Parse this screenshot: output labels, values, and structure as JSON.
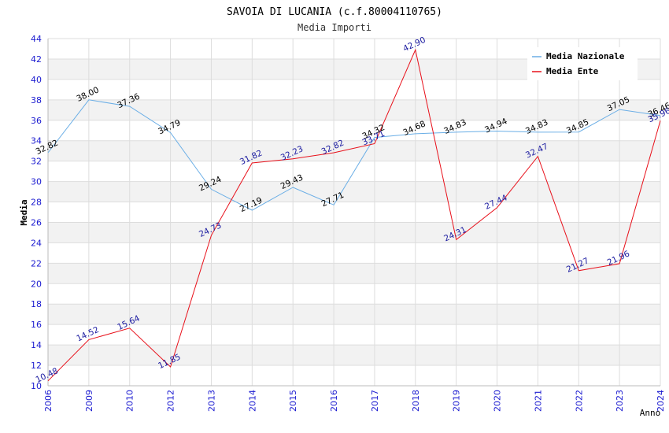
{
  "chart_data": {
    "type": "line",
    "title": "SAVOIA DI LUCANIA (c.f.80004110765)",
    "subtitle": "Media Importi",
    "xlabel": "Anno",
    "ylabel": "Media",
    "ylim": [
      10,
      44
    ],
    "ytick_step": 2,
    "grid": true,
    "legend_position": "top-right",
    "categories": [
      "2006",
      "2009",
      "2010",
      "2012",
      "2013",
      "2014",
      "2015",
      "2016",
      "2017",
      "2018",
      "2019",
      "2020",
      "2021",
      "2022",
      "2023",
      "2024"
    ],
    "series": [
      {
        "name": "Media Nazionale",
        "color": "#6aaee6",
        "label_color": "#000000",
        "values": [
          32.82,
          38.0,
          37.36,
          34.79,
          29.24,
          27.19,
          29.43,
          27.71,
          34.32,
          34.68,
          34.83,
          34.94,
          34.83,
          34.85,
          37.05,
          36.46
        ],
        "labels": [
          "32.82",
          "38.00",
          "37.36",
          "34.79",
          "29.24",
          "27.19",
          "29.43",
          "27.71",
          "34.32",
          "34.68",
          "34.83",
          "34.94",
          "34.83",
          "34.85",
          "37.05",
          "36.46"
        ]
      },
      {
        "name": "Media Ente",
        "color": "#e8101a",
        "label_color": "#1a1aa0",
        "values": [
          10.48,
          14.52,
          15.64,
          11.85,
          24.73,
          31.82,
          32.23,
          32.82,
          33.71,
          42.9,
          24.31,
          27.44,
          32.47,
          21.27,
          21.96,
          35.96
        ],
        "labels": [
          "10.48",
          "14.52",
          "15.64",
          "11.85",
          "24.73",
          "31.82",
          "32.23",
          "32.82",
          "33.71",
          "42.90",
          "24.31",
          "27.44",
          "32.47",
          "21.27",
          "21.96",
          "35.96"
        ]
      }
    ]
  },
  "colors": {
    "axis_text": "#1a1ad0",
    "band": "#f2f2f2",
    "grid": "#dddddd"
  }
}
